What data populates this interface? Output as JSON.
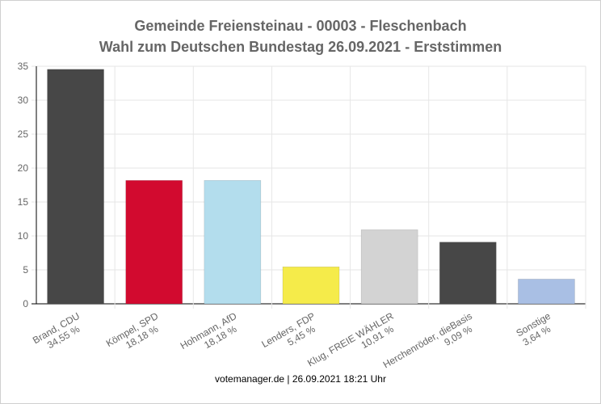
{
  "chart_data": {
    "type": "bar",
    "title": "Gemeinde Freiensteinau - 00003 - Fleschenbach",
    "subtitle": "Wahl zum Deutschen Bundestag 26.09.2021  - Erststimmen",
    "categories": [
      "Brand, CDU",
      "Kömpel, SPD",
      "Hohmann, AfD",
      "Lenders, FDP",
      "Klug, FREIE WÄHLER",
      "Herchenröder, dieBasis",
      "Sonstige"
    ],
    "percent_labels": [
      "34,55 %",
      "18,18 %",
      "18,18 %",
      "5,45 %",
      "10,91 %",
      "9,09 %",
      "3,64 %"
    ],
    "values": [
      34.55,
      18.18,
      18.18,
      5.45,
      10.91,
      9.09,
      3.64
    ],
    "colors": [
      "#474747",
      "#d20a2f",
      "#b3dded",
      "#f5eb4a",
      "#d3d3d3",
      "#474747",
      "#a9bfe4"
    ],
    "ylim": [
      0,
      35
    ],
    "yticks": [
      "0",
      "5",
      "10",
      "15",
      "20",
      "25",
      "30",
      "35"
    ],
    "grid": true,
    "legend": "none"
  },
  "footer": "votemanager.de | 26.09.2021 18:21 Uhr"
}
